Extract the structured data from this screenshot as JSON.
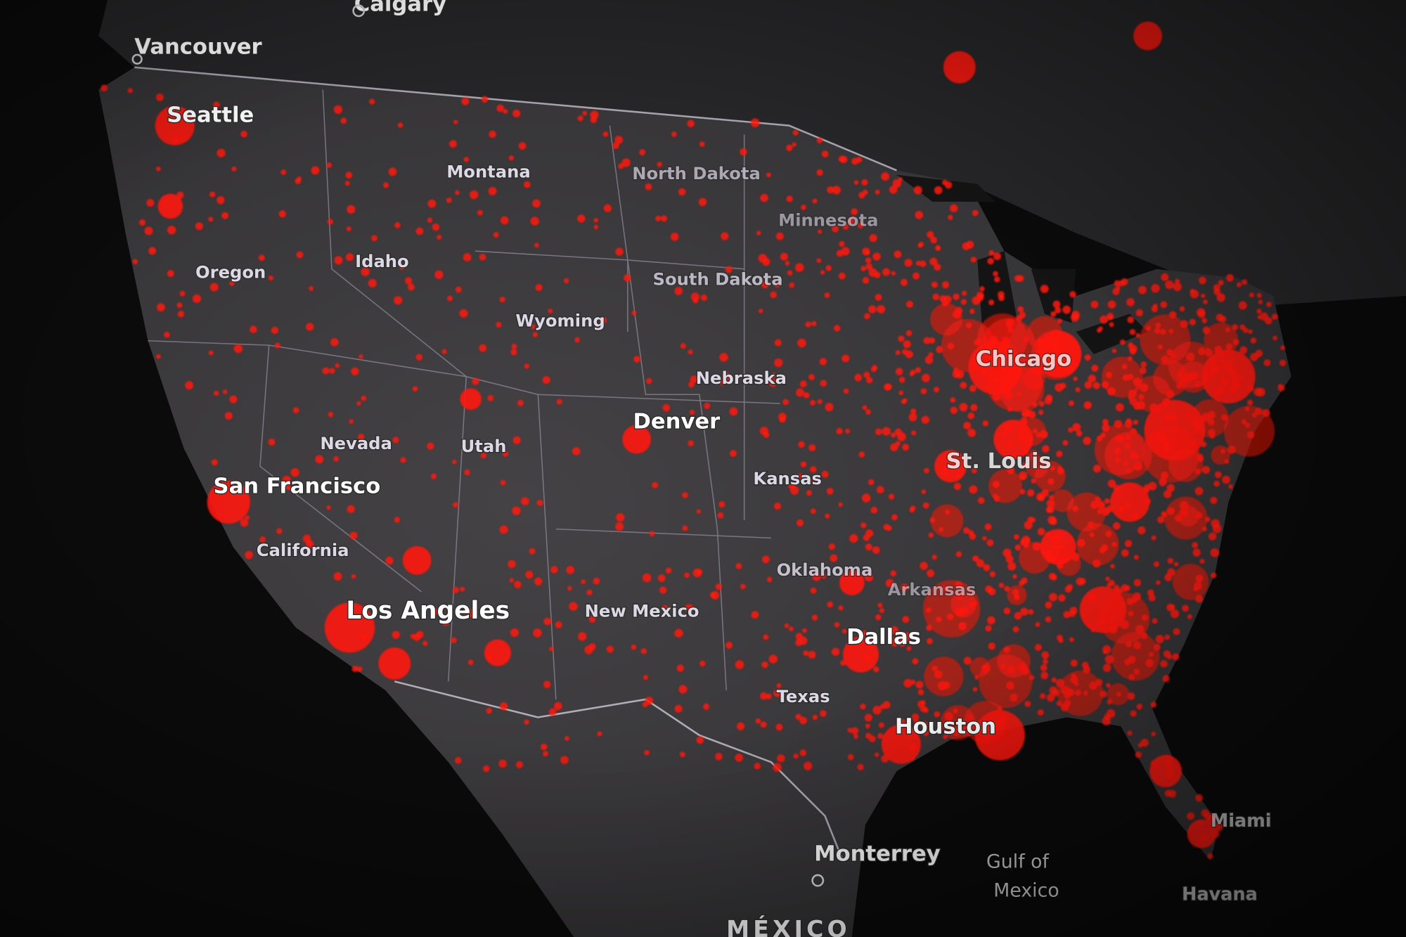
{
  "map": {
    "colors": {
      "ocean": "#0b0b0b",
      "land": "#3b3a3b",
      "canada": "#262527",
      "border": "#b9b4c4",
      "dot": "#ff1a0a",
      "label": "#e9e6ee"
    },
    "labels": {
      "calgary": "Calgary",
      "vancouver": "Vancouver",
      "seattle": "Seattle",
      "montana": "Montana",
      "north_dakota": "North Dakota",
      "minnesota": "Minnesota",
      "oregon": "Oregon",
      "idaho": "Idaho",
      "south_dakota": "South Dakota",
      "wyoming": "Wyoming",
      "nebraska": "Nebraska",
      "nevada": "Nevada",
      "utah": "Utah",
      "denver": "Denver",
      "kansas": "Kansas",
      "st_louis": "St. Louis",
      "chicago": "Chicago",
      "san_francisco": "San Francisco",
      "california": "California",
      "los_angeles": "Los Angeles",
      "new_mexico": "New Mexico",
      "oklahoma": "Oklahoma",
      "arkansas": "Arkansas",
      "dallas": "Dallas",
      "texas": "Texas",
      "houston": "Houston",
      "monterrey": "Monterrey",
      "gulf_of_mexico_1": "Gulf of",
      "gulf_of_mexico_2": "Mexico",
      "miami": "Miami",
      "havana": "Havana",
      "mexico": "MÉXICO"
    }
  }
}
